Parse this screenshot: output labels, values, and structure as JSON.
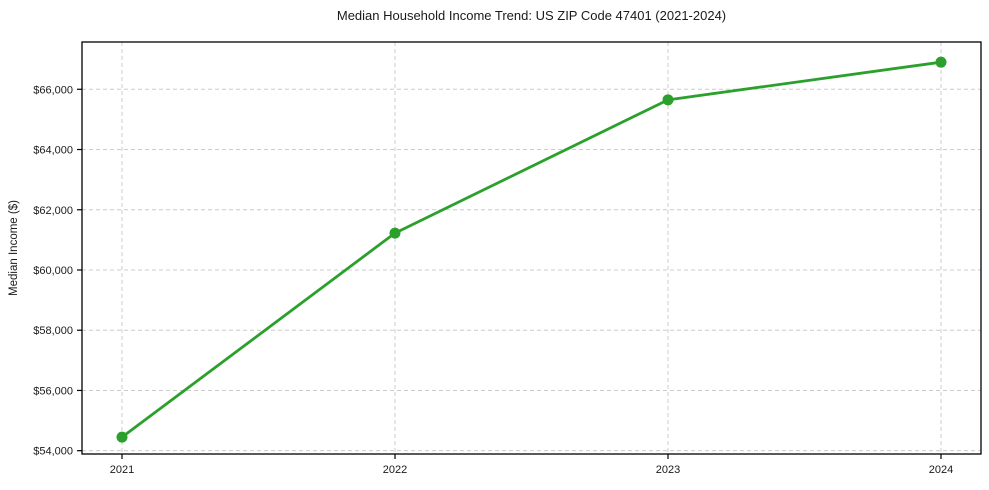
{
  "chart_data": {
    "type": "line",
    "title": "Median Household Income Trend: US ZIP Code 47401 (2021-2024)",
    "xlabel": "",
    "ylabel": "Median Income ($)",
    "categories": [
      "2021",
      "2022",
      "2023",
      "2024"
    ],
    "values": [
      54450,
      61225,
      65650,
      66900
    ],
    "ylim": [
      53890,
      67570
    ],
    "yticks": {
      "values": [
        54000,
        56000,
        58000,
        60000,
        62000,
        64000,
        66000
      ],
      "labels": [
        "$54,000",
        "$56,000",
        "$58,000",
        "$60,000",
        "$62,000",
        "$64,000",
        "$66,000"
      ]
    },
    "grid": {
      "horizontal": true,
      "vertical": true,
      "style": "dashed",
      "color": "#cccccc"
    },
    "legend": "none",
    "line_color": "#2ca02c",
    "marker": "circle",
    "marker_color": "#2ca02c",
    "axis_color": "#000000",
    "text_color": "#1a1a1a",
    "background_color": "#ffffff"
  }
}
